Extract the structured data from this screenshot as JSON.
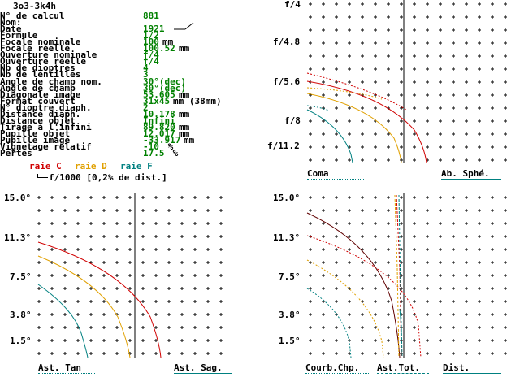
{
  "title": "3o3-3k4h",
  "params": [
    {
      "label": "N° de calcul",
      "value": "881",
      "unit": ""
    },
    {
      "label": "Nom:",
      "value": "",
      "unit": ""
    },
    {
      "label": "Date",
      "value": "1921",
      "unit": ""
    },
    {
      "label": "Formule",
      "value": "1/2",
      "unit": ""
    },
    {
      "label": "Focale nominale",
      "value": "100",
      "unit": "mm"
    },
    {
      "label": "Focale réelle",
      "value": "100.52",
      "unit": "mm"
    },
    {
      "label": "Ouverture nominale",
      "value": "f/4",
      "unit": ""
    },
    {
      "label": "Ouverture réelle",
      "value": "f/4",
      "unit": ""
    },
    {
      "label": "Nb de dioptres",
      "value": "4",
      "unit": ""
    },
    {
      "label": "Nb de lentilles",
      "value": "3",
      "unit": ""
    },
    {
      "label": "Angle de champ nom.",
      "value": "30°(dec)",
      "unit": ""
    },
    {
      "label": "Angle de champ",
      "value": "30°(dec)",
      "unit": ""
    },
    {
      "label": "Diagonale image",
      "value": "53.605",
      "unit": "mm"
    },
    {
      "label": "Format couvert",
      "value": "31x45",
      "unit": "mm (38mm)"
    },
    {
      "label": "N° dioptre diaph.",
      "value": "2",
      "unit": ""
    },
    {
      "label": "Distance diaph.",
      "value": "10.178",
      "unit": "mm"
    },
    {
      "label": "Distance objet",
      "value": "Infini",
      "unit": ""
    },
    {
      "label": "Tirage à l'infini",
      "value": "89.820",
      "unit": "mm"
    },
    {
      "label": "Pupille objet",
      "value": "12.017",
      "unit": "mm"
    },
    {
      "label": "Pupille image",
      "value": "-33.917",
      "unit": "mm"
    },
    {
      "label": "Vignetage relatif",
      "value": "-10",
      "unit": " %"
    },
    {
      "label": "Pertes",
      "value": "17.5",
      "unit": " %"
    }
  ],
  "legend": {
    "raie_c": "raie C",
    "raie_d": "raie D",
    "raie_f": "raie F"
  },
  "scale_note": "f/1000 [0,2% de dist.]",
  "colors": {
    "red": "#d00000",
    "orange": "#e0a000",
    "teal": "#008080",
    "green": "#008000",
    "dark": "#600000"
  },
  "charts": {
    "top_right": {
      "y_labels": [
        "f/4",
        "f/4.8",
        "f/5.6",
        "f/8",
        "f/11.2"
      ],
      "label_left": "Coma",
      "label_right": "Ab. Sphé."
    },
    "bottom_left": {
      "y_labels": [
        "15.0°",
        "11.3°",
        "7.5°",
        "3.8°",
        "1.5°"
      ],
      "label_left": "Ast. Tan",
      "label_right": "Ast. Sag."
    },
    "bottom_right": {
      "y_labels": [
        "15.0°",
        "11.3°",
        "7.5°",
        "3.8°",
        "1.5°"
      ],
      "label_left": "Courb.Chp.",
      "label_mid": "Ast.Tot.",
      "label_right": "Dist."
    }
  }
}
